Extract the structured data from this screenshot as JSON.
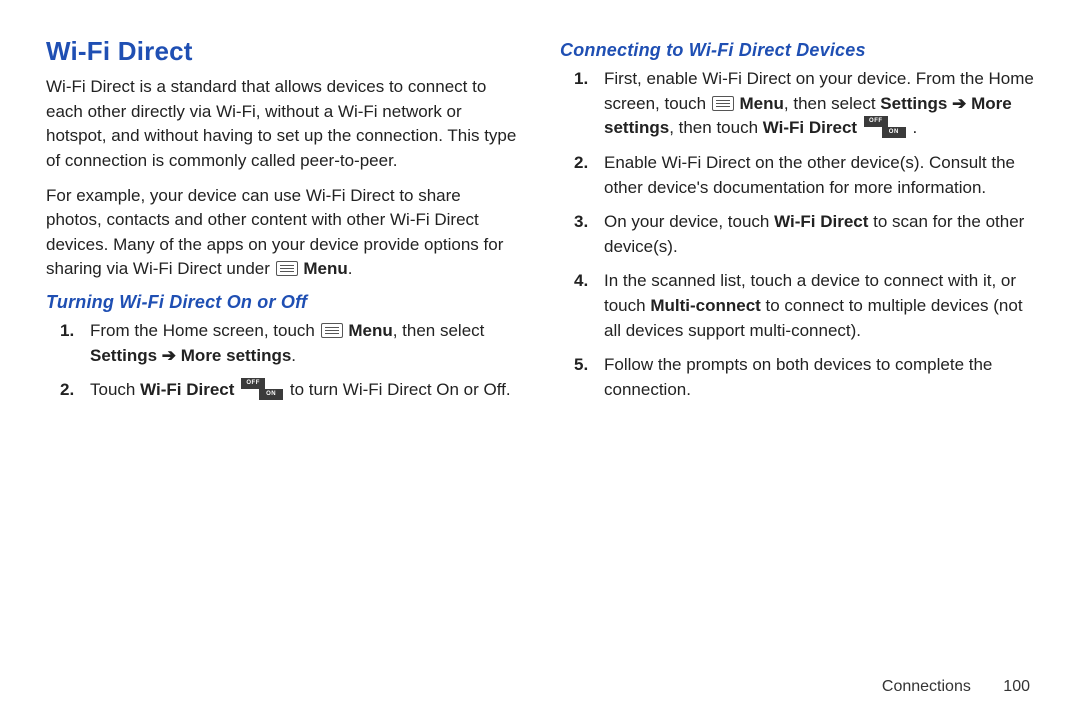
{
  "colors": {
    "heading_blue": "#1f4fb3",
    "body_text": "#222222",
    "background": "#ffffff",
    "icon_gray": "#555555",
    "toggle_bg": "#3b3b3b"
  },
  "typography": {
    "main_heading_size_pt": 20,
    "sub_heading_size_pt": 14,
    "body_size_pt": 13,
    "font_family": "Arial"
  },
  "left": {
    "heading": "Wi-Fi Direct",
    "para1": "Wi-Fi Direct is a standard that allows devices to connect to each other directly via Wi-Fi, without a Wi-Fi network or hotspot, and without having to set up the connection. This type of connection is commonly called peer-to-peer.",
    "para2_pre": "For example, your device can use Wi-Fi Direct to share photos, contacts and other content with other Wi-Fi Direct devices. Many of the apps on your device provide options for sharing via Wi-Fi Direct under ",
    "para2_menu_label": "Menu",
    "para2_post": ".",
    "subheading": "Turning Wi-Fi Direct On or Off",
    "step1_pre": "From the Home screen, touch ",
    "step1_menu_label": "Menu",
    "step1_mid": ", then select ",
    "step1_settings": "Settings ",
    "step1_arrow": "➔",
    "step1_more": " More settings",
    "step1_post": ".",
    "step2_pre": "Touch ",
    "step2_wfd": "Wi-Fi Direct",
    "step2_mid": " ",
    "step2_post": " to turn Wi-Fi Direct On or Off."
  },
  "right": {
    "subheading": "Connecting to Wi-Fi Direct Devices",
    "step1_pre": "First, enable Wi-Fi Direct on your device. From the Home screen, touch ",
    "step1_menu_label": "Menu",
    "step1_mid1": ", then select ",
    "step1_settings": "Settings ",
    "step1_arrow1": "➔",
    "step1_more": " More settings",
    "step1_mid2": ", then touch ",
    "step1_wfd": "Wi-Fi Direct",
    "step1_post": " .",
    "step2": "Enable Wi-Fi Direct on the other device(s). Consult the other device's documentation for more information.",
    "step3_pre": "On your device, touch ",
    "step3_wfd": "Wi-Fi Direct",
    "step3_post": " to scan for the other device(s).",
    "step4_pre": "In the scanned list, touch a device to connect with it, or touch ",
    "step4_mc": "Multi-connect",
    "step4_post": " to connect to multiple devices (not all devices support multi-connect).",
    "step5": "Follow the prompts on both devices to complete the connection."
  },
  "footer": {
    "section": "Connections",
    "page": "100"
  },
  "icons": {
    "toggle_off": "OFF",
    "toggle_on": "ON"
  }
}
